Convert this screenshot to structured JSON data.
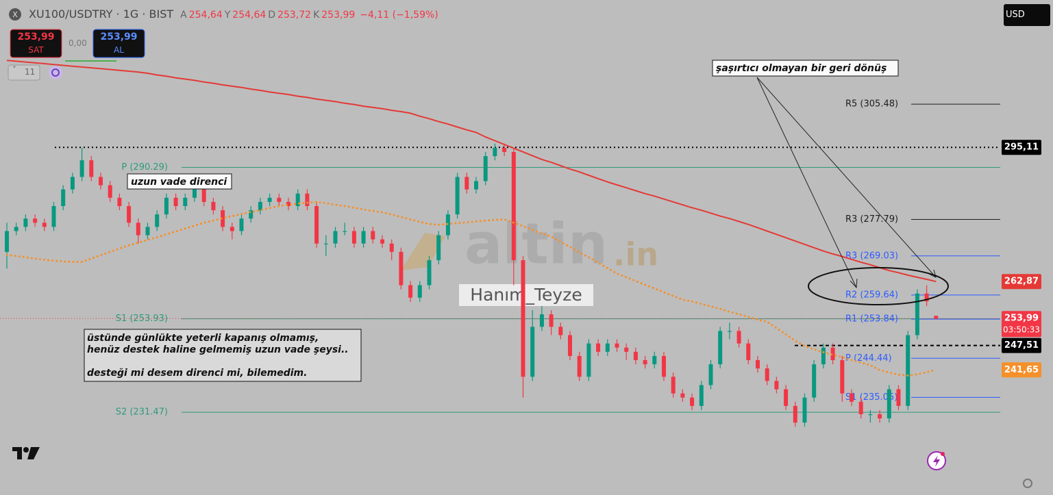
{
  "header": {
    "symbol": "XU100/USDTRY · 1G · BIST",
    "ohlc": [
      {
        "key": "A",
        "value": "254,64"
      },
      {
        "key": "Y",
        "value": "254,64"
      },
      {
        "key": "D",
        "value": "253,72"
      },
      {
        "key": "K",
        "value": "253,99"
      }
    ],
    "change": "−4,11 (−1,59%)"
  },
  "trade": {
    "sell_price": "253,99",
    "sell_label": "SAT",
    "spread": "0,00",
    "buy_price": "253,99",
    "buy_label": "AL",
    "indicators": "11",
    "currency": "USD"
  },
  "watermark": {
    "brand": "altin",
    "suffix": ".in",
    "author": "Hanım_Teyze"
  },
  "annotations": {
    "resistance": "uzun vade direnci",
    "reversal": "şaşırtıcı olmayan bir geri dönüş",
    "note": [
      "üstünde günlükte yeterli kapanış olmamış,",
      "henüz destek haline gelmemiş uzun vade şeysi..",
      "desteği mi desem direnci mi, bilemedim."
    ]
  },
  "chart_data": {
    "type": "candlestick",
    "up_color": "#089981",
    "down_color": "#f23645",
    "ylim": [
      211.6,
      330.5
    ],
    "open": [
      270,
      275,
      276,
      278,
      277,
      276,
      281,
      285,
      288,
      292,
      288,
      286,
      283,
      281,
      277,
      274,
      276,
      279,
      283,
      281,
      283,
      285,
      282,
      280,
      276,
      275,
      278,
      280,
      282,
      283,
      282,
      281,
      284,
      281,
      272,
      272,
      275,
      275,
      272,
      275,
      273,
      272,
      270,
      262,
      259,
      262,
      268,
      274,
      279,
      288,
      285,
      287,
      293,
      295,
      294,
      268,
      240,
      252,
      255,
      252,
      250,
      245,
      240,
      248,
      246,
      248,
      247,
      246,
      244,
      243,
      245,
      240,
      236,
      235,
      233,
      238,
      243,
      251,
      251,
      248,
      244,
      242,
      239,
      237,
      233,
      229,
      235,
      243,
      247,
      244,
      236,
      234,
      231,
      231,
      230,
      237,
      233,
      250,
      260,
      254.64
    ],
    "high": [
      277,
      277,
      279,
      279,
      278,
      282,
      286,
      289,
      295,
      293,
      289,
      287,
      284,
      282,
      278,
      277,
      280,
      284,
      284,
      284,
      286,
      286,
      283,
      281,
      277,
      279,
      281,
      283,
      284,
      284,
      283,
      285,
      285,
      282,
      274,
      276,
      277,
      276,
      276,
      276,
      274,
      273,
      271,
      263,
      263,
      269,
      275,
      280,
      289,
      289,
      288,
      294,
      296,
      296,
      295,
      269,
      256,
      257,
      256,
      253,
      251,
      246,
      249,
      249,
      249,
      249,
      248,
      247,
      245,
      246,
      246,
      241,
      237,
      236,
      239,
      244,
      252,
      253,
      252,
      249,
      245,
      243,
      240,
      238,
      234,
      236,
      244,
      248,
      248,
      245,
      237,
      235,
      232,
      232,
      238,
      238,
      251,
      261,
      262,
      254.64
    ],
    "low": [
      266,
      274,
      275,
      276,
      275,
      275,
      280,
      284,
      287,
      287,
      285,
      282,
      280,
      276,
      272,
      273,
      275,
      278,
      280,
      280,
      282,
      281,
      279,
      275,
      273,
      274,
      277,
      279,
      281,
      281,
      280,
      280,
      280,
      271,
      269,
      271,
      274,
      271,
      271,
      272,
      271,
      268,
      261,
      258,
      258,
      261,
      267,
      273,
      278,
      284,
      284,
      286,
      292,
      293,
      262,
      235,
      239,
      251,
      250,
      249,
      244,
      239,
      239,
      245,
      245,
      246,
      244,
      243,
      242,
      242,
      239,
      235,
      234,
      232,
      232,
      237,
      242,
      249,
      247,
      243,
      241,
      238,
      236,
      232,
      228,
      228,
      234,
      242,
      243,
      234,
      233,
      230,
      229,
      229,
      229,
      232,
      232,
      249,
      257,
      253.72
    ],
    "close": [
      275,
      276,
      278,
      277,
      276,
      281,
      285,
      288,
      292,
      288,
      286,
      283,
      281,
      277,
      274,
      276,
      279,
      283,
      281,
      283,
      285,
      282,
      280,
      276,
      275,
      278,
      280,
      282,
      283,
      282,
      281,
      284,
      281,
      272,
      272,
      275,
      275,
      272,
      275,
      273,
      272,
      270,
      262,
      259,
      262,
      268,
      274,
      279,
      288,
      285,
      287,
      293,
      295,
      294,
      268,
      240,
      252,
      255,
      252,
      250,
      245,
      240,
      248,
      246,
      248,
      247,
      246,
      244,
      243,
      245,
      240,
      236,
      235,
      233,
      238,
      243,
      251,
      251,
      248,
      244,
      242,
      239,
      237,
      233,
      229,
      235,
      243,
      247,
      244,
      236,
      234,
      231,
      231,
      230,
      237,
      233,
      250,
      260,
      258.1,
      253.99
    ],
    "moving_averages": [
      {
        "color": "#e53935",
        "style": "solid",
        "values": [
          316.0,
          315.8,
          315.6,
          315.4,
          315.2,
          315.0,
          314.8,
          314.6,
          314.4,
          314.2,
          314.0,
          313.8,
          313.6,
          313.4,
          313.2,
          312.9,
          312.5,
          312.2,
          311.8,
          311.5,
          311.2,
          310.8,
          310.5,
          310.1,
          309.8,
          309.5,
          309.1,
          308.8,
          308.4,
          308.1,
          307.8,
          307.4,
          307.1,
          306.7,
          306.4,
          306.1,
          305.7,
          305.4,
          305.0,
          304.7,
          304.4,
          304.0,
          303.7,
          303.3,
          302.6,
          302.0,
          301.3,
          300.7,
          300.0,
          299.3,
          298.7,
          297.6,
          296.7,
          295.8,
          294.9,
          294.0,
          293.1,
          292.2,
          291.5,
          290.7,
          289.9,
          289.2,
          288.4,
          287.6,
          286.8,
          286.1,
          285.4,
          284.7,
          284.0,
          283.4,
          282.7,
          282.0,
          281.3,
          280.6,
          280.0,
          279.3,
          278.6,
          278.0,
          277.3,
          276.6,
          275.8,
          275.0,
          274.2,
          273.4,
          272.6,
          271.8,
          271.0,
          270.2,
          269.5,
          268.9,
          268.2,
          267.5,
          266.9,
          266.2,
          265.5,
          265.0,
          264.4,
          263.9,
          263.4,
          262.87
        ]
      },
      {
        "color": "#f5902a",
        "style": "dotted",
        "values": [
          269.3,
          269.0,
          268.7,
          268.4,
          268.1,
          267.9,
          267.7,
          267.6,
          267.6,
          268.4,
          269.2,
          270.0,
          270.8,
          271.6,
          272.2,
          272.9,
          273.5,
          274.2,
          274.9,
          275.6,
          276.3,
          277.0,
          277.5,
          278.1,
          278.6,
          279.1,
          279.6,
          280.0,
          280.5,
          281.0,
          281.3,
          281.6,
          281.8,
          282.0,
          281.7,
          281.3,
          281.0,
          280.6,
          280.2,
          279.8,
          279.5,
          279.0,
          278.4,
          277.8,
          277.2,
          276.7,
          276.5,
          276.7,
          276.9,
          277.1,
          277.3,
          277.5,
          277.7,
          277.8,
          277.0,
          276.2,
          275.3,
          274.4,
          273.7,
          272.4,
          271.2,
          269.9,
          268.7,
          267.4,
          266.1,
          264.8,
          263.9,
          263.0,
          262.1,
          261.2,
          260.3,
          259.4,
          258.5,
          258.1,
          257.5,
          256.9,
          256.3,
          255.6,
          255.0,
          254.4,
          253.7,
          253.2,
          251.7,
          250.2,
          248.6,
          247.4,
          246.6,
          245.9,
          245.3,
          244.7,
          244.0,
          243.4,
          242.8,
          241.6,
          241.0,
          240.5,
          240.3,
          240.6,
          241.1,
          241.65
        ]
      }
    ],
    "levels_long": [
      {
        "label": "P (290.29)",
        "value": 290.29,
        "color": "#2e9a7c"
      },
      {
        "label": "S1 (253.93)",
        "value": 253.93,
        "color": "#2e9a7c"
      },
      {
        "label": "S2 (231.47)",
        "value": 231.47,
        "color": "#2e9a7c"
      }
    ],
    "levels_short": [
      {
        "label": "R5 (305.48)",
        "value": 305.48,
        "color": "#1e1e1e"
      },
      {
        "label": "R3 (277.79)",
        "value": 277.79,
        "color": "#1e1e1e"
      },
      {
        "label": "R3 (269.03)",
        "value": 269.03,
        "color": "#2d5bff"
      },
      {
        "label": "R2 (259.64)",
        "value": 259.64,
        "color": "#2d5bff"
      },
      {
        "label": "R1 (253.84)",
        "value": 253.84,
        "color": "#2d5bff"
      },
      {
        "label": "P (244.44)",
        "value": 244.44,
        "color": "#2d5bff"
      },
      {
        "label": "S1 (235.05)",
        "value": 235.05,
        "color": "#2d5bff"
      }
    ],
    "price_tags": [
      {
        "value": 295.11,
        "label": "295,11",
        "color": "#000000",
        "line": "dotted"
      },
      {
        "value": 262.87,
        "label": "262,87",
        "color": "#e53935"
      },
      {
        "value": 253.99,
        "label": "253,99",
        "color": "#f23645",
        "countdown": "03:50:33",
        "line": "dotted"
      },
      {
        "value": 247.51,
        "label": "247,51",
        "color": "#000000",
        "line": "dashed"
      },
      {
        "value": 241.65,
        "label": "241,65",
        "color": "#f5902a"
      }
    ]
  }
}
